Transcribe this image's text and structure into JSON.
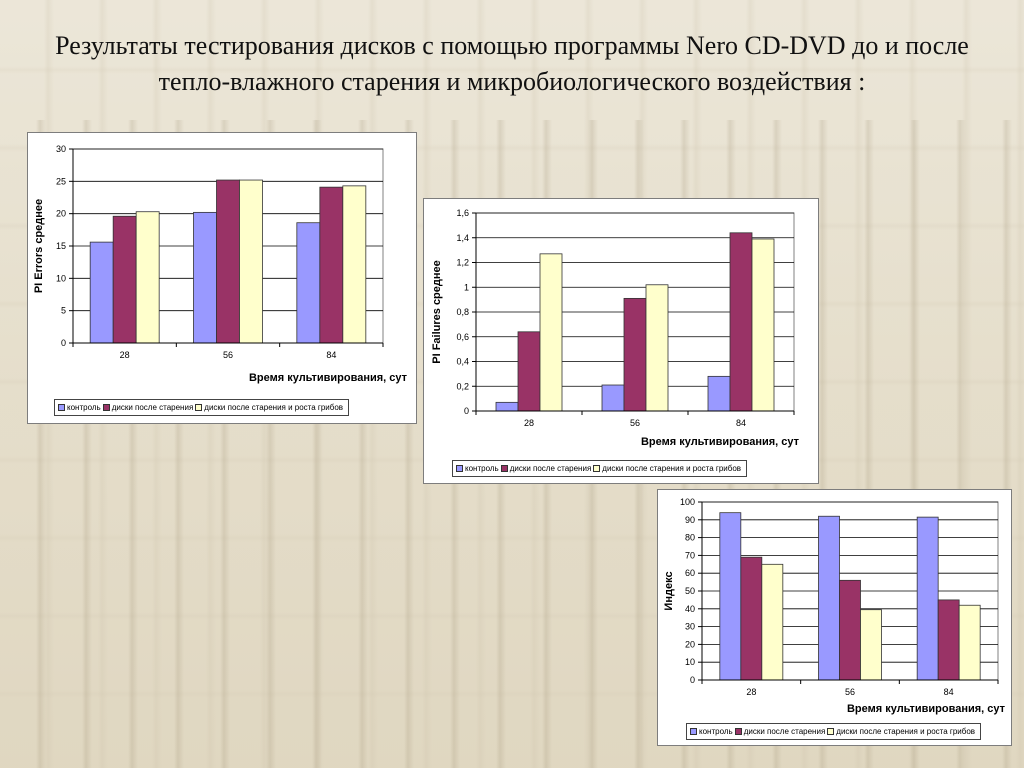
{
  "slide": {
    "title": "Результаты тестирования дисков с помощью программы Nero CD-DVD до и после тепло-влажного старения и микробиологического воздействия :"
  },
  "colors": {
    "control": "#9999ff",
    "aged": "#993366",
    "aged_fungi": "#ffffcc"
  },
  "chart_data": [
    {
      "type": "bar",
      "categories": [
        "28",
        "56",
        "84"
      ],
      "series": [
        {
          "name": "контроль",
          "values": [
            15.6,
            20.2,
            18.6
          ]
        },
        {
          "name": "диски после старения",
          "values": [
            19.6,
            25.2,
            24.1
          ]
        },
        {
          "name": "диски после старения и роста грибов",
          "values": [
            20.3,
            25.2,
            24.3
          ]
        }
      ],
      "ylim": [
        0,
        30
      ],
      "yticks": [
        "0",
        "5",
        "10",
        "15",
        "20",
        "25",
        "30"
      ],
      "ytick_values": [
        0,
        5,
        10,
        15,
        20,
        25,
        30
      ],
      "ylabel": "PI Errors среднее",
      "xlabel": "Время культивирования, сут",
      "grid": true,
      "legend": "bottom"
    },
    {
      "type": "bar",
      "categories": [
        "28",
        "56",
        "84"
      ],
      "series": [
        {
          "name": "контроль",
          "values": [
            0.07,
            0.21,
            0.28
          ]
        },
        {
          "name": "диски после старения",
          "values": [
            0.64,
            0.91,
            1.44
          ]
        },
        {
          "name": "диски после старения и роста грибов",
          "values": [
            1.27,
            1.02,
            1.39
          ]
        }
      ],
      "ylim": [
        0,
        1.6
      ],
      "yticks": [
        "0",
        "0,2",
        "0,4",
        "0,6",
        "0,8",
        "1",
        "1,2",
        "1,4",
        "1,6"
      ],
      "ytick_values": [
        0,
        0.2,
        0.4,
        0.6,
        0.8,
        1.0,
        1.2,
        1.4,
        1.6
      ],
      "ylabel": "PI Failures среднее",
      "xlabel": "Время культивирования, сут",
      "grid": true,
      "legend": "bottom"
    },
    {
      "type": "bar",
      "categories": [
        "28",
        "56",
        "84"
      ],
      "series": [
        {
          "name": "контроль",
          "values": [
            94,
            92,
            91.5
          ]
        },
        {
          "name": "диски после старения",
          "values": [
            69,
            56,
            45
          ]
        },
        {
          "name": "диски после старения и роста грибов",
          "values": [
            65,
            39.5,
            42
          ]
        }
      ],
      "ylim": [
        0,
        100
      ],
      "yticks": [
        "0",
        "10",
        "20",
        "30",
        "40",
        "50",
        "60",
        "70",
        "80",
        "90",
        "100"
      ],
      "ytick_values": [
        0,
        10,
        20,
        30,
        40,
        50,
        60,
        70,
        80,
        90,
        100
      ],
      "ylabel": "Индекс",
      "xlabel": "Время культивирования, сут",
      "grid": true,
      "legend": "bottom"
    }
  ]
}
